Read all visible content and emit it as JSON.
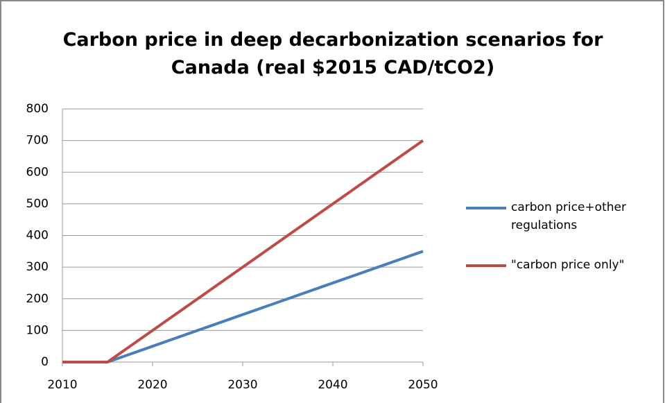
{
  "chart_data": {
    "type": "line",
    "title": "Carbon price in deep decarbonization scenarios for Canada (real $2015 CAD/tCO2)",
    "x": [
      2010,
      2015,
      2020,
      2030,
      2040,
      2050
    ],
    "series": [
      {
        "name": "carbon price+other regulations",
        "color": "#4a7ebb",
        "values": [
          0,
          0,
          50,
          150,
          250,
          350
        ]
      },
      {
        "name": "\"carbon price only\"",
        "color": "#be4b48",
        "values": [
          0,
          0,
          100,
          300,
          500,
          700
        ]
      }
    ],
    "xlim": [
      2010,
      2050
    ],
    "xticks": [
      2010,
      2020,
      2030,
      2040,
      2050
    ],
    "ylim": [
      0,
      800
    ],
    "yticks": [
      0,
      100,
      200,
      300,
      400,
      500,
      600,
      700,
      800
    ],
    "grid": true,
    "legend": "right"
  }
}
